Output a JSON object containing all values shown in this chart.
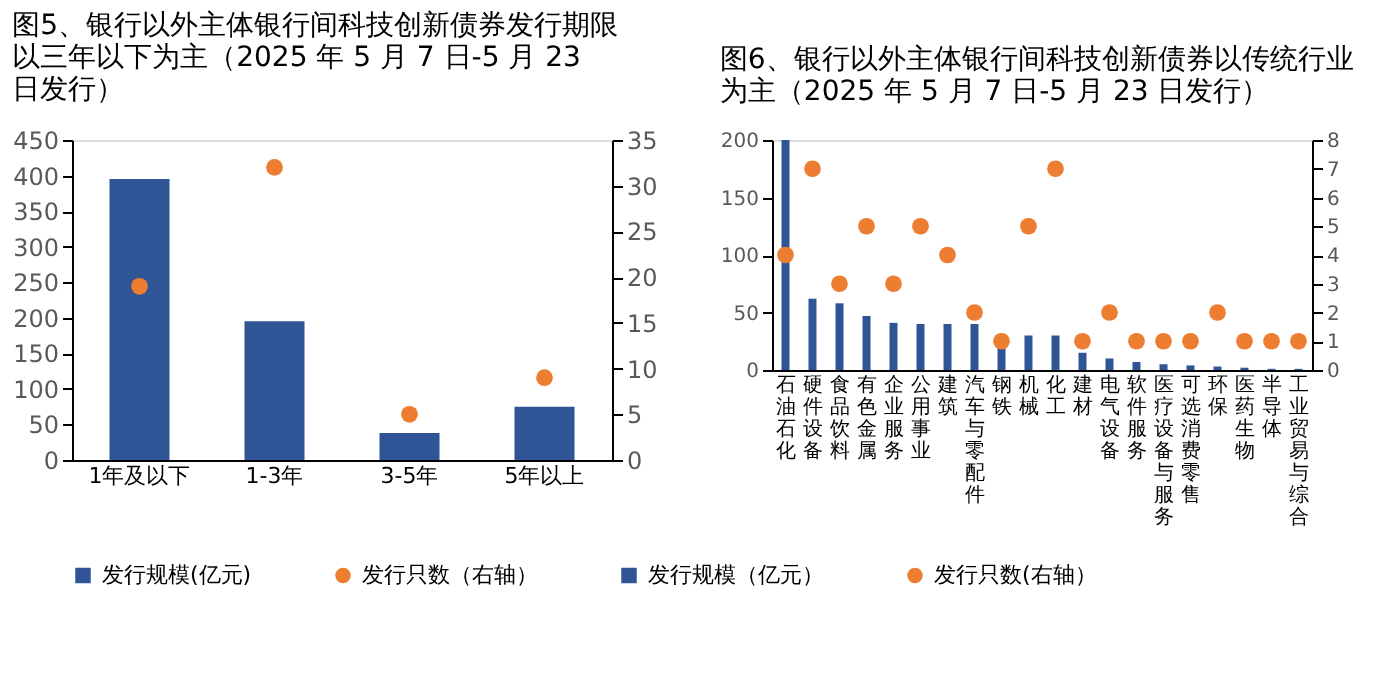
{
  "chart_data": [
    {
      "type": "bar",
      "title": "图5、银行以外主体银行间科技创新债券发行期限以三年以下为主（2025 年 5 月 7 日-5 月 23 日发行）",
      "categories": [
        "1年及以下",
        "1-3年",
        "3-5年",
        "5年以上"
      ],
      "series": [
        {
          "name": "发行规模(亿元)",
          "color": "#2f5597",
          "values": [
            395,
            195,
            38,
            75
          ]
        },
        {
          "name": "发行只数（右轴）",
          "type": "scatter",
          "axis": "y2",
          "color": "#ed7d31",
          "values": [
            19,
            32,
            5,
            9
          ]
        }
      ],
      "ylim": [
        0,
        450
      ],
      "yticks": [
        0,
        50,
        100,
        150,
        200,
        250,
        300,
        350,
        400,
        450
      ],
      "y2lim": [
        0,
        35
      ],
      "y2ticks": [
        0,
        5,
        10,
        15,
        20,
        25,
        30,
        35
      ],
      "legend": "bottom",
      "grid": false,
      "marker": "circle"
    },
    {
      "type": "bar",
      "title": "图6、银行以外主体银行间科技创新债券以传统行业为主（2025 年 5 月 7 日-5 月 23 日发行）",
      "categories": [
        "石油石化",
        "硬件设备",
        "食品饮料",
        "有色金属",
        "企业服务",
        "公用事业",
        "建筑",
        "汽车与零配件",
        "钢铁",
        "机械",
        "化工",
        "建材",
        "电气设备",
        "软件服务",
        "医疗设备与服务",
        "可选消费零售",
        "环保",
        "医药生物",
        "半导体",
        "工业贸易与综合"
      ],
      "series": [
        {
          "name": "发行规模（亿元）",
          "color": "#2f5597",
          "values": [
            200,
            62,
            58,
            47,
            41,
            40,
            40,
            40,
            20,
            30,
            30,
            15,
            10,
            7,
            5,
            4,
            3,
            2,
            1,
            1
          ]
        },
        {
          "name": "发行只数(右轴）",
          "type": "scatter",
          "axis": "y2",
          "color": "#ed7d31",
          "values": [
            4,
            7,
            3,
            5,
            3,
            5,
            4,
            2,
            1,
            5,
            7,
            1,
            2,
            1,
            1,
            1,
            2,
            1,
            1,
            1
          ]
        }
      ],
      "ylim": [
        0,
        200
      ],
      "yticks": [
        0,
        50,
        100,
        150,
        200
      ],
      "y2lim": [
        0,
        8
      ],
      "y2ticks": [
        0,
        1,
        2,
        3,
        4,
        5,
        6,
        7,
        8
      ],
      "legend": "bottom",
      "grid": false,
      "marker": "circle"
    }
  ]
}
